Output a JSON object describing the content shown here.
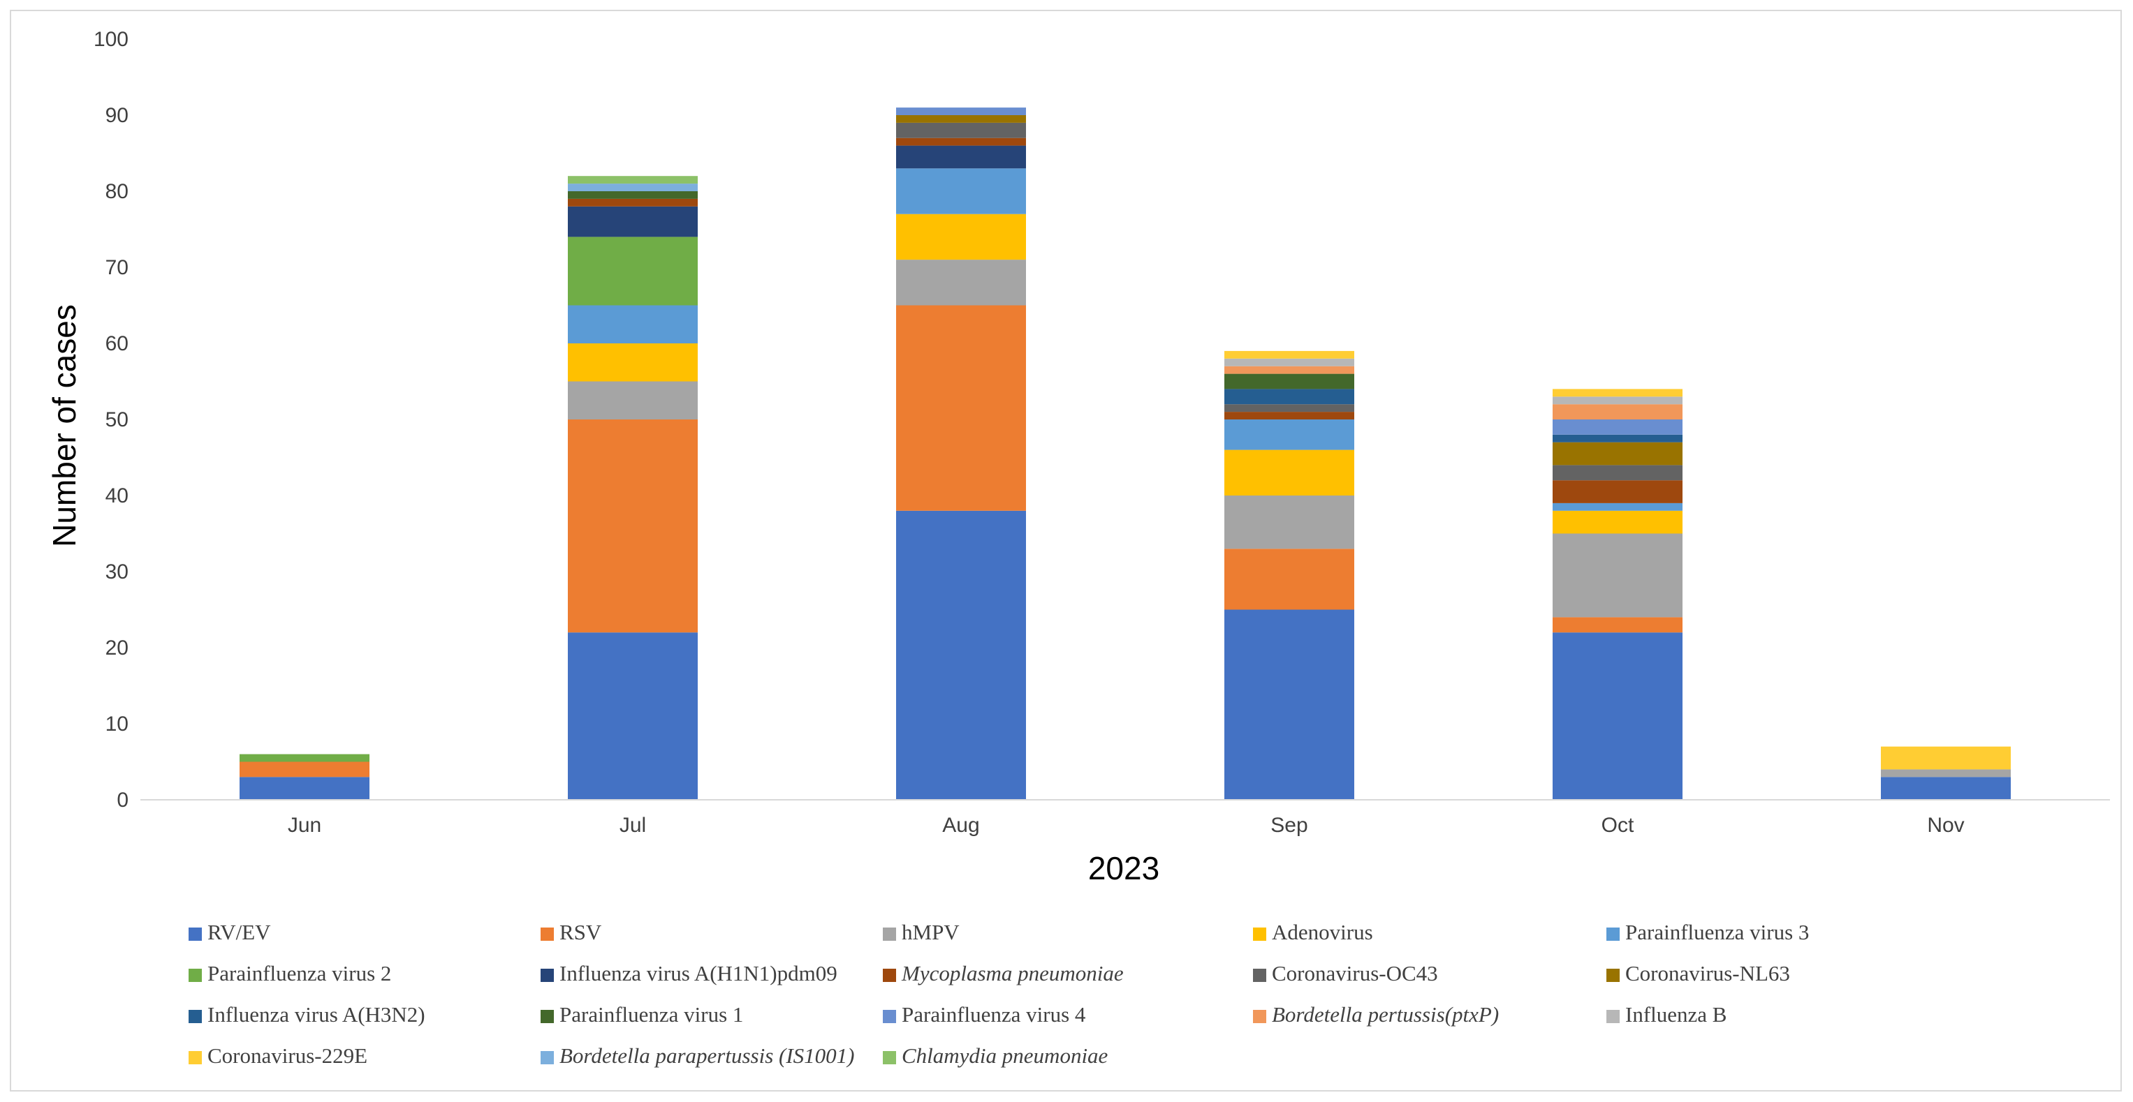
{
  "chart_data": {
    "type": "bar",
    "stacked": true,
    "title": "",
    "xlabel": "2023",
    "ylabel": "Number of cases",
    "ylim": [
      0,
      100
    ],
    "yticks": [
      0,
      10,
      20,
      30,
      40,
      50,
      60,
      70,
      80,
      90,
      100
    ],
    "categories": [
      "Jun",
      "Jul",
      "Aug",
      "Sep",
      "Oct",
      "Nov"
    ],
    "legend_position": "bottom",
    "series": [
      {
        "name": "RV/EV",
        "color": "#4472c4",
        "italic": false,
        "values": [
          3,
          22,
          38,
          25,
          22,
          3
        ]
      },
      {
        "name": "RSV",
        "color": "#ed7d31",
        "italic": false,
        "values": [
          2,
          28,
          27,
          8,
          2,
          0
        ]
      },
      {
        "name": "hMPV",
        "color": "#a5a5a5",
        "italic": false,
        "values": [
          0,
          5,
          6,
          7,
          11,
          1
        ]
      },
      {
        "name": "Adenovirus",
        "color": "#ffc000",
        "italic": false,
        "values": [
          0,
          5,
          6,
          6,
          3,
          0
        ]
      },
      {
        "name": "Parainfluenza virus 3",
        "color": "#5b9bd5",
        "italic": false,
        "values": [
          0,
          5,
          6,
          4,
          1,
          0
        ]
      },
      {
        "name": "Parainfluenza virus 2",
        "color": "#70ad47",
        "italic": false,
        "values": [
          1,
          9,
          0,
          0,
          0,
          0
        ]
      },
      {
        "name": "Influenza virus A(H1N1)pdm09",
        "color": "#264478",
        "italic": false,
        "values": [
          0,
          4,
          3,
          0,
          0,
          0
        ]
      },
      {
        "name": "Mycoplasma pneumoniae",
        "color": "#9e480e",
        "italic": true,
        "values": [
          0,
          1,
          1,
          1,
          3,
          0
        ]
      },
      {
        "name": "Coronavirus-OC43",
        "color": "#636363",
        "italic": false,
        "values": [
          0,
          0,
          2,
          1,
          2,
          0
        ]
      },
      {
        "name": "Coronavirus-NL63",
        "color": "#997300",
        "italic": false,
        "values": [
          0,
          0,
          1,
          0,
          3,
          0
        ]
      },
      {
        "name": "Influenza virus A(H3N2)",
        "color": "#255e91",
        "italic": false,
        "values": [
          0,
          0,
          0,
          2,
          1,
          0
        ]
      },
      {
        "name": "Parainfluenza virus 1",
        "color": "#43682b",
        "italic": false,
        "values": [
          0,
          1,
          0,
          2,
          0,
          0
        ]
      },
      {
        "name": "Parainfluenza virus 4",
        "color": "#698ed0",
        "italic": false,
        "values": [
          0,
          0,
          1,
          0,
          2,
          0
        ]
      },
      {
        "name": "Bordetella pertussis(ptxP)",
        "color": "#f1975a",
        "italic": true,
        "values": [
          0,
          0,
          0,
          1,
          2,
          0
        ]
      },
      {
        "name": "Influenza B",
        "color": "#b7b7b7",
        "italic": false,
        "values": [
          0,
          0,
          0,
          1,
          1,
          0
        ]
      },
      {
        "name": "Coronavirus-229E",
        "color": "#ffcd33",
        "italic": false,
        "values": [
          0,
          0,
          0,
          1,
          1,
          3
        ]
      },
      {
        "name": "Bordetella parapertussis (IS1001)",
        "color": "#7cafdd",
        "italic": true,
        "values": [
          0,
          1,
          0,
          0,
          0,
          0
        ]
      },
      {
        "name": "Chlamydia pneumoniae",
        "color": "#8cc168",
        "italic": true,
        "values": [
          0,
          1,
          0,
          0,
          0,
          0
        ]
      }
    ]
  }
}
